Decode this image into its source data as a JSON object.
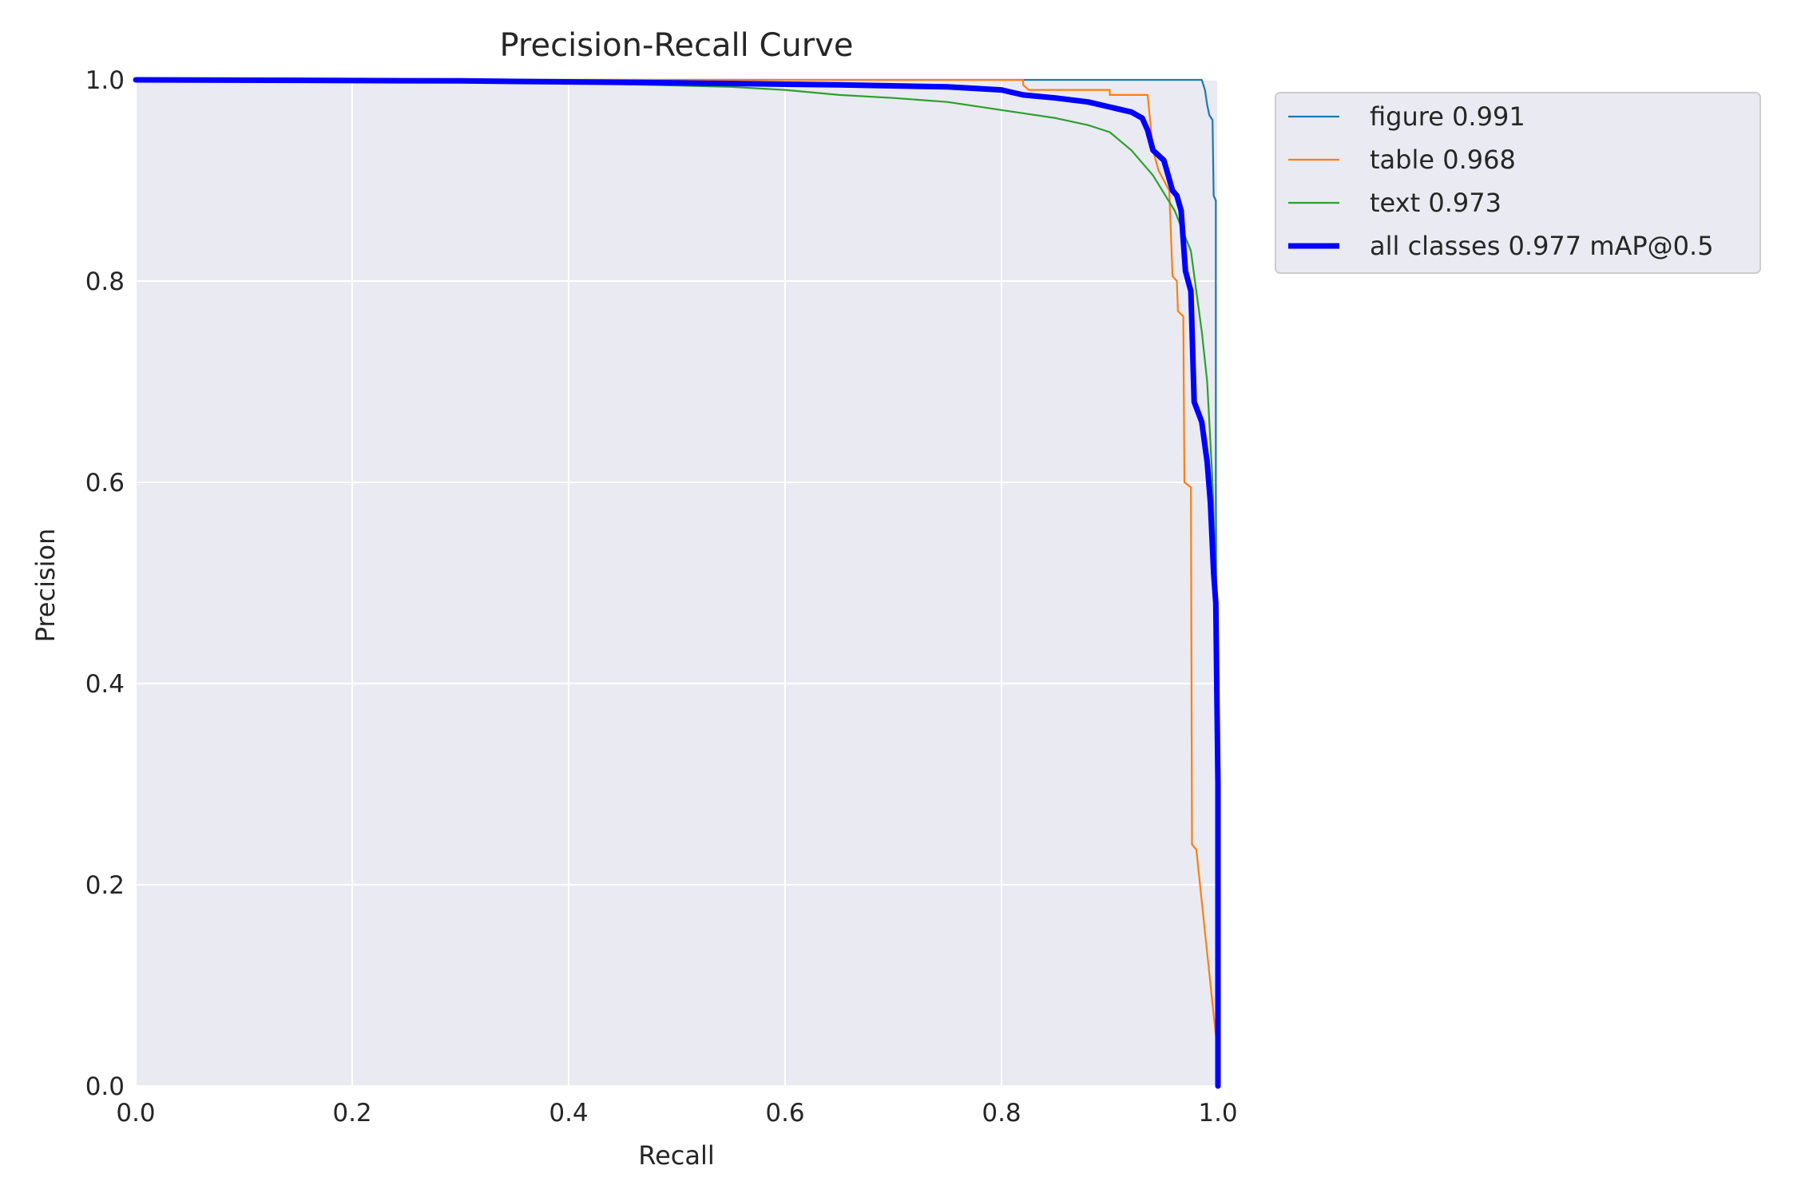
{
  "chart_data": {
    "type": "line",
    "title": "Precision-Recall Curve",
    "xlabel": "Recall",
    "ylabel": "Precision",
    "xlim": [
      0,
      1
    ],
    "ylim": [
      0,
      1
    ],
    "xticks": [
      "0.0",
      "0.2",
      "0.4",
      "0.6",
      "0.8",
      "1.0"
    ],
    "yticks": [
      "0.0",
      "0.2",
      "0.4",
      "0.6",
      "0.8",
      "1.0"
    ],
    "grid": true,
    "legend_position": "outside-top-right",
    "background_color": "#eaeaf2",
    "series": [
      {
        "name": "figure 0.991",
        "color": "#1f77b4",
        "width": "thin",
        "points": [
          [
            0.0,
            1.0
          ],
          [
            0.985,
            1.0
          ],
          [
            0.988,
            0.99
          ],
          [
            0.99,
            0.975
          ],
          [
            0.992,
            0.965
          ],
          [
            0.995,
            0.96
          ],
          [
            0.996,
            0.885
          ],
          [
            0.998,
            0.88
          ],
          [
            0.998,
            0.6
          ],
          [
            0.999,
            0.3
          ],
          [
            1.0,
            0.0
          ]
        ]
      },
      {
        "name": "table 0.968",
        "color": "#ff7f0e",
        "width": "thin",
        "points": [
          [
            0.0,
            1.0
          ],
          [
            0.82,
            1.0
          ],
          [
            0.82,
            0.995
          ],
          [
            0.825,
            0.99
          ],
          [
            0.9,
            0.99
          ],
          [
            0.9,
            0.985
          ],
          [
            0.935,
            0.985
          ],
          [
            0.94,
            0.93
          ],
          [
            0.945,
            0.91
          ],
          [
            0.95,
            0.9
          ],
          [
            0.955,
            0.89
          ],
          [
            0.958,
            0.805
          ],
          [
            0.962,
            0.8
          ],
          [
            0.963,
            0.77
          ],
          [
            0.968,
            0.765
          ],
          [
            0.969,
            0.6
          ],
          [
            0.975,
            0.595
          ],
          [
            0.976,
            0.24
          ],
          [
            0.98,
            0.235
          ],
          [
            1.0,
            0.03
          ]
        ]
      },
      {
        "name": "text 0.973",
        "color": "#2ca02c",
        "width": "thin",
        "points": [
          [
            0.0,
            1.0
          ],
          [
            0.4,
            0.997
          ],
          [
            0.55,
            0.993
          ],
          [
            0.6,
            0.99
          ],
          [
            0.65,
            0.985
          ],
          [
            0.7,
            0.982
          ],
          [
            0.75,
            0.978
          ],
          [
            0.8,
            0.97
          ],
          [
            0.85,
            0.962
          ],
          [
            0.88,
            0.955
          ],
          [
            0.9,
            0.948
          ],
          [
            0.92,
            0.93
          ],
          [
            0.94,
            0.905
          ],
          [
            0.96,
            0.87
          ],
          [
            0.975,
            0.83
          ],
          [
            0.985,
            0.75
          ],
          [
            0.99,
            0.7
          ],
          [
            0.995,
            0.6
          ],
          [
            0.998,
            0.5
          ],
          [
            1.0,
            0.3
          ],
          [
            1.0,
            0.0
          ]
        ]
      },
      {
        "name": "all classes 0.977 mAP@0.5",
        "color": "#0000ff",
        "width": "thick",
        "points": [
          [
            0.0,
            1.0
          ],
          [
            0.3,
            0.999
          ],
          [
            0.5,
            0.997
          ],
          [
            0.65,
            0.995
          ],
          [
            0.75,
            0.993
          ],
          [
            0.8,
            0.99
          ],
          [
            0.82,
            0.985
          ],
          [
            0.85,
            0.982
          ],
          [
            0.88,
            0.978
          ],
          [
            0.9,
            0.973
          ],
          [
            0.92,
            0.968
          ],
          [
            0.93,
            0.962
          ],
          [
            0.935,
            0.95
          ],
          [
            0.94,
            0.93
          ],
          [
            0.95,
            0.92
          ],
          [
            0.958,
            0.89
          ],
          [
            0.962,
            0.885
          ],
          [
            0.966,
            0.87
          ],
          [
            0.97,
            0.81
          ],
          [
            0.975,
            0.79
          ],
          [
            0.978,
            0.68
          ],
          [
            0.985,
            0.66
          ],
          [
            0.99,
            0.62
          ],
          [
            0.993,
            0.58
          ],
          [
            0.996,
            0.51
          ],
          [
            0.998,
            0.48
          ],
          [
            1.0,
            0.3
          ],
          [
            1.0,
            0.0
          ]
        ]
      }
    ]
  }
}
